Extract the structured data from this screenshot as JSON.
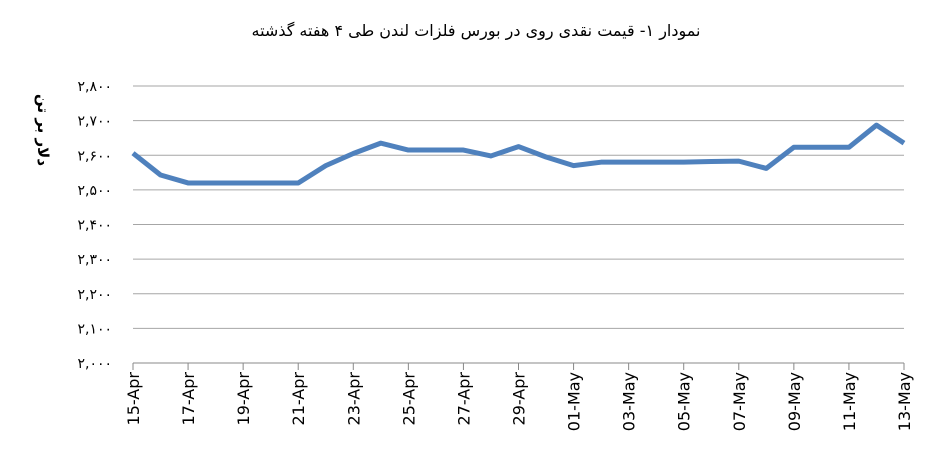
{
  "chart_data": {
    "type": "line",
    "title": "نمودار ۱- قیمت نقدی روی  در بورس فلزات لندن طی ۴ هفته گذشته",
    "y_label": "دلار بر تن",
    "categories": [
      "15-Apr",
      null,
      "17-Apr",
      null,
      "19-Apr",
      null,
      "21-Apr",
      null,
      "23-Apr",
      null,
      "25-Apr",
      null,
      "27-Apr",
      null,
      "29-Apr",
      null,
      "01-May",
      null,
      "03-May",
      null,
      "05-May",
      null,
      "07-May",
      null,
      "09-May",
      null,
      "11-May",
      null,
      "13-May"
    ],
    "series": [
      {
        "name": "قیمت نقدی روی",
        "color": "#4f81bd",
        "values": [
          2606,
          2543,
          2520,
          2520,
          2520,
          2520,
          2520,
          2570,
          2605,
          2635,
          2615,
          2615,
          2615,
          2598,
          2625,
          2595,
          2570,
          2580,
          2580,
          2580,
          2580,
          2582,
          2583,
          2562,
          2623,
          2623,
          2623,
          2687,
          2635
        ]
      }
    ],
    "ylim": [
      2000,
      2800
    ],
    "yticks": [
      {
        "value": 2000,
        "label": "۲,۰۰۰"
      },
      {
        "value": 2100,
        "label": "۲,۱۰۰"
      },
      {
        "value": 2200,
        "label": "۲,۲۰۰"
      },
      {
        "value": 2300,
        "label": "۲,۳۰۰"
      },
      {
        "value": 2400,
        "label": "۲,۴۰۰"
      },
      {
        "value": 2500,
        "label": "۲,۵۰۰"
      },
      {
        "value": 2600,
        "label": "۲,۶۰۰"
      },
      {
        "value": 2700,
        "label": "۲,۷۰۰"
      },
      {
        "value": 2800,
        "label": "۲,۸۰۰"
      }
    ],
    "grid": true
  }
}
